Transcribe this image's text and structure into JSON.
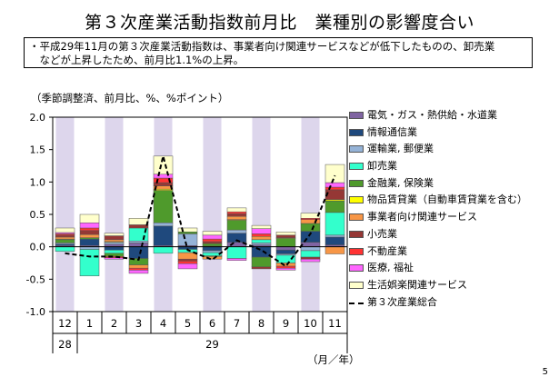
{
  "title": "第３次産業活動指数前月比　業種別の影響度合い",
  "note": [
    "・平成29年11月の第３次産業活動指数は、事業者向け関連サービスなどが低下したものの、卸売業",
    "　などが上昇したため、前月比1.1%の上昇。"
  ],
  "unit_label": "（季節調整済、前月比、%、%ポイント）",
  "axis_footer": "（月／年）",
  "page_number": "5",
  "colors": {
    "column_highlight": "#ddd6ec",
    "zero_line": "#000000",
    "total_line": "#000000"
  },
  "chart_data": {
    "type": "bar",
    "stacked": true,
    "categories": [
      "12",
      "1",
      "2",
      "3",
      "4",
      "5",
      "6",
      "7",
      "8",
      "9",
      "10",
      "11"
    ],
    "year_labels": [
      {
        "label": "28",
        "start": 0,
        "end": 0
      },
      {
        "label": "29",
        "start": 1,
        "end": 11
      }
    ],
    "highlighted_categories": [
      "12",
      "2",
      "4",
      "6",
      "8",
      "10"
    ],
    "ylim": [
      -1.0,
      2.0
    ],
    "yticks": [
      "2.0",
      "1.5",
      "1.0",
      "0.5",
      "0.0",
      "-0.5",
      "-1.0"
    ],
    "ytick_values": [
      2.0,
      1.5,
      1.0,
      0.5,
      0.0,
      -0.5,
      -1.0
    ],
    "grid": false,
    "legend_position": "right",
    "series": [
      {
        "name": "電気・ガス・熱供給・水道業",
        "color": "#8064a2",
        "values": [
          0.02,
          0.02,
          0.04,
          0.06,
          0.02,
          0.02,
          0.01,
          0.07,
          0.03,
          -0.05,
          0.07,
          0.03
        ]
      },
      {
        "name": "情報通信業",
        "color": "#1f497d",
        "values": [
          0.02,
          0.1,
          -0.05,
          -0.18,
          0.3,
          -0.04,
          -0.06,
          0.14,
          -0.16,
          -0.06,
          0.17,
          0.12
        ]
      },
      {
        "name": "運輸業, 郵便業",
        "color": "#95b3d7",
        "values": [
          0.02,
          -0.04,
          0.03,
          0.03,
          0.05,
          0.18,
          -0.03,
          0.05,
          0.03,
          -0.02,
          -0.06,
          0.03
        ]
      },
      {
        "name": "卸売業",
        "color": "#33ffcc",
        "values": [
          -0.07,
          -0.41,
          -0.05,
          0.2,
          -0.1,
          -0.05,
          -0.05,
          -0.18,
          0.05,
          -0.12,
          -0.1,
          0.35
        ]
      },
      {
        "name": "金融業, 保険業",
        "color": "#4f9a2c",
        "values": [
          0.05,
          0.02,
          -0.05,
          -0.1,
          0.5,
          0.03,
          0.04,
          0.15,
          -0.15,
          0.13,
          0.12,
          0.18
        ]
      },
      {
        "name": "物品賃貸業（自動車賃貸業を含む）",
        "color": "#ffff00",
        "values": [
          0.01,
          0.0,
          0.01,
          0.0,
          0.02,
          0.0,
          -0.01,
          0.01,
          0.0,
          0.01,
          0.0,
          0.02
        ]
      },
      {
        "name": "事業者向け関連サービス",
        "color": "#f79646",
        "values": [
          0.03,
          0.05,
          0.03,
          -0.05,
          0.05,
          -0.1,
          -0.04,
          0.05,
          0.05,
          -0.05,
          0.06,
          -0.11
        ]
      },
      {
        "name": "小売業",
        "color": "#953735",
        "values": [
          0.03,
          0.06,
          0.06,
          0.05,
          0.05,
          -0.03,
          0.03,
          0.04,
          -0.03,
          0.04,
          -0.03,
          0.15
        ]
      },
      {
        "name": "不動産業",
        "color": "#ff3333",
        "values": [
          0.02,
          0.04,
          -0.02,
          -0.03,
          0.07,
          -0.04,
          0.04,
          0.03,
          0.04,
          -0.03,
          0.02,
          0.04
        ]
      },
      {
        "name": "医療, 福祉",
        "color": "#ff66ff",
        "values": [
          0.02,
          0.08,
          -0.02,
          -0.05,
          0.06,
          -0.08,
          0.06,
          -0.03,
          0.08,
          -0.03,
          -0.04,
          0.07
        ]
      },
      {
        "name": "生活娯楽関連サービス",
        "color": "#ffffcc",
        "values": [
          0.07,
          0.13,
          0.04,
          0.1,
          0.28,
          0.06,
          0.06,
          0.06,
          0.05,
          0.05,
          0.08,
          0.28
        ]
      }
    ],
    "line_series": {
      "name": "第３次産業総合",
      "color": "#000000",
      "values": [
        -0.1,
        -0.15,
        -0.15,
        -0.2,
        1.4,
        -0.05,
        -0.2,
        0.1,
        -0.05,
        -0.3,
        0.2,
        1.1
      ]
    }
  }
}
